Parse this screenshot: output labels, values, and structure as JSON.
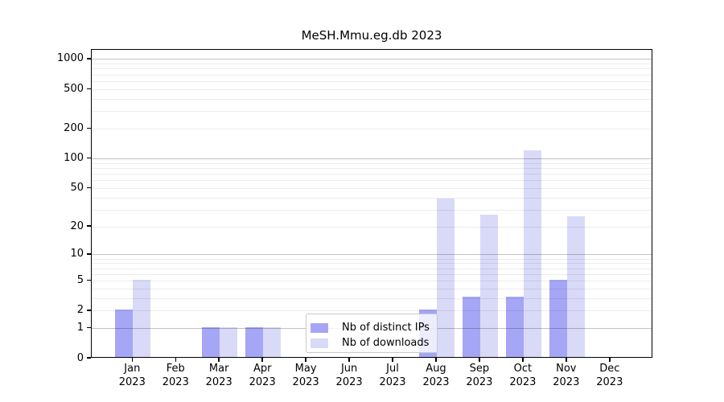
{
  "title": "MeSH.Mmu.eg.db 2023",
  "colors": {
    "background": "#ffffff",
    "axis": "#000000",
    "bar_distinct_ips": "#a6a6f6",
    "bar_downloads": "#d9d9f8",
    "grid_major": "rgba(0,0,0,0.24)",
    "grid_minor": "rgba(0,0,0,0.075)",
    "legend_border": "#c9c9c9"
  },
  "chart_data": {
    "type": "bar",
    "title": "MeSH.Mmu.eg.db 2023",
    "categories": [
      "Jan 2023",
      "Feb 2023",
      "Mar 2023",
      "Apr 2023",
      "May 2023",
      "Jun 2023",
      "Jul 2023",
      "Aug 2023",
      "Sep 2023",
      "Oct 2023",
      "Nov 2023",
      "Dec 2023"
    ],
    "series": [
      {
        "name": "Nb of distinct IPs",
        "color": "#a6a6f6",
        "values": [
          2,
          0,
          1,
          1,
          0,
          0,
          0,
          2,
          3,
          3,
          5,
          0
        ]
      },
      {
        "name": "Nb of downloads",
        "color": "#d9d9f8",
        "values": [
          5,
          0,
          1,
          1,
          0,
          0,
          0,
          38,
          26,
          118,
          25,
          0
        ]
      }
    ],
    "xlabel": "",
    "ylabel": "",
    "y_axis": {
      "scale": "log10(1+x)",
      "tick_values": [
        0,
        1,
        2,
        5,
        10,
        20,
        50,
        100,
        200,
        500,
        1000
      ],
      "major_gridlines": [
        1,
        10,
        100,
        1000
      ],
      "minor_gridlines": [
        2,
        3,
        4,
        5,
        6,
        7,
        8,
        9,
        20,
        30,
        40,
        50,
        60,
        70,
        80,
        90,
        200,
        300,
        400,
        500,
        600,
        700,
        800,
        900
      ],
      "range": [
        0,
        1240
      ]
    },
    "grid": true,
    "legend_position": "inside-bottom-center"
  }
}
